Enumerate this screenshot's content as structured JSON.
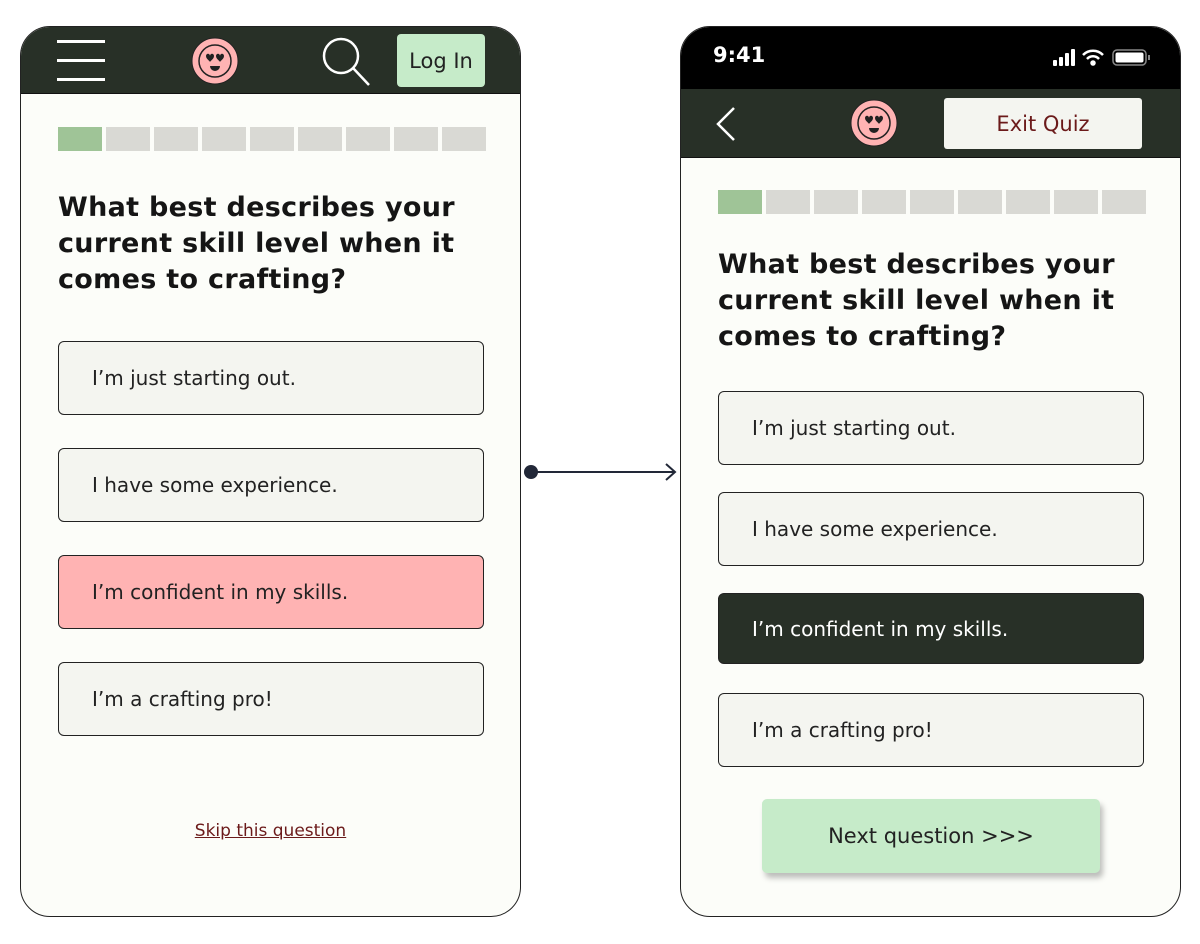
{
  "left": {
    "login_label": "Log In",
    "question": "What best describes your current skill level when it comes to crafting?",
    "progress": {
      "current": 1,
      "total": 9
    },
    "options": [
      "I’m just starting out.",
      "I have some experience.",
      "I’m confident in my skills.",
      "I’m a crafting pro!"
    ],
    "selected_index": 2,
    "skip_label": "Skip this question"
  },
  "right": {
    "status": {
      "time": "9:41"
    },
    "exit_label": "Exit Quiz",
    "question": "What best describes your current skill level when it comes to crafting?",
    "progress": {
      "current": 1,
      "total": 9
    },
    "options": [
      "I’m just starting out.",
      "I have some experience.",
      "I’m confident in my skills.",
      "I’m a crafting pro!"
    ],
    "selected_index": 2,
    "next_label": "Next question >>>"
  },
  "colors": {
    "header": "#283027",
    "accent_pink": "#ffb3b3",
    "accent_green": "#c6ebc9",
    "progress_done": "#9fc497",
    "link": "#6b1a1a"
  }
}
